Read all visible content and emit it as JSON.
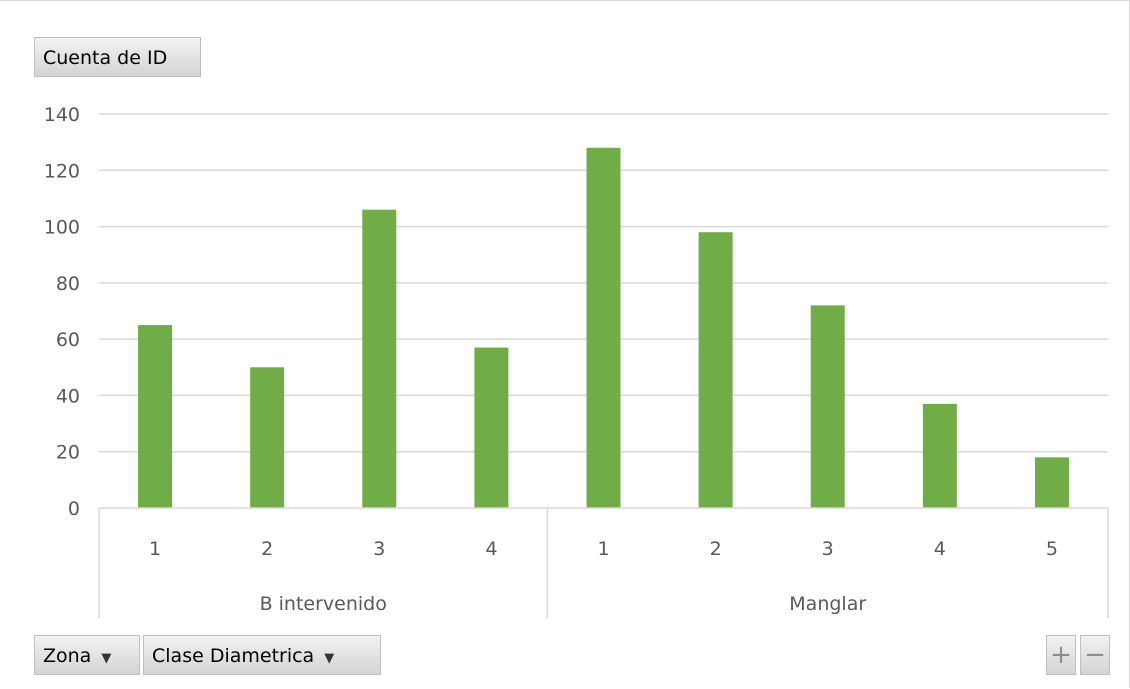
{
  "buttons": {
    "value_field": "Cuenta de ID",
    "axis_fields": [
      "Zona",
      "Clase Diametrica"
    ],
    "zoom_in": "+",
    "zoom_out": "−"
  },
  "colors": {
    "bar": "#70ad47",
    "grid": "#d9d9d9",
    "text": "#595959"
  },
  "chart_data": {
    "type": "bar",
    "title": "",
    "xlabel": "",
    "ylabel": "",
    "ylim": [
      0,
      140
    ],
    "yticks": [
      "0",
      "20",
      "40",
      "60",
      "80",
      "100",
      "120",
      "140"
    ],
    "grid": true,
    "groups": [
      {
        "name": "B intervenido",
        "categories": [
          "1",
          "2",
          "3",
          "4"
        ],
        "values": [
          65,
          50,
          106,
          57
        ]
      },
      {
        "name": "Manglar",
        "categories": [
          "1",
          "2",
          "3",
          "4",
          "5"
        ],
        "values": [
          128,
          98,
          72,
          37,
          18
        ]
      }
    ]
  }
}
